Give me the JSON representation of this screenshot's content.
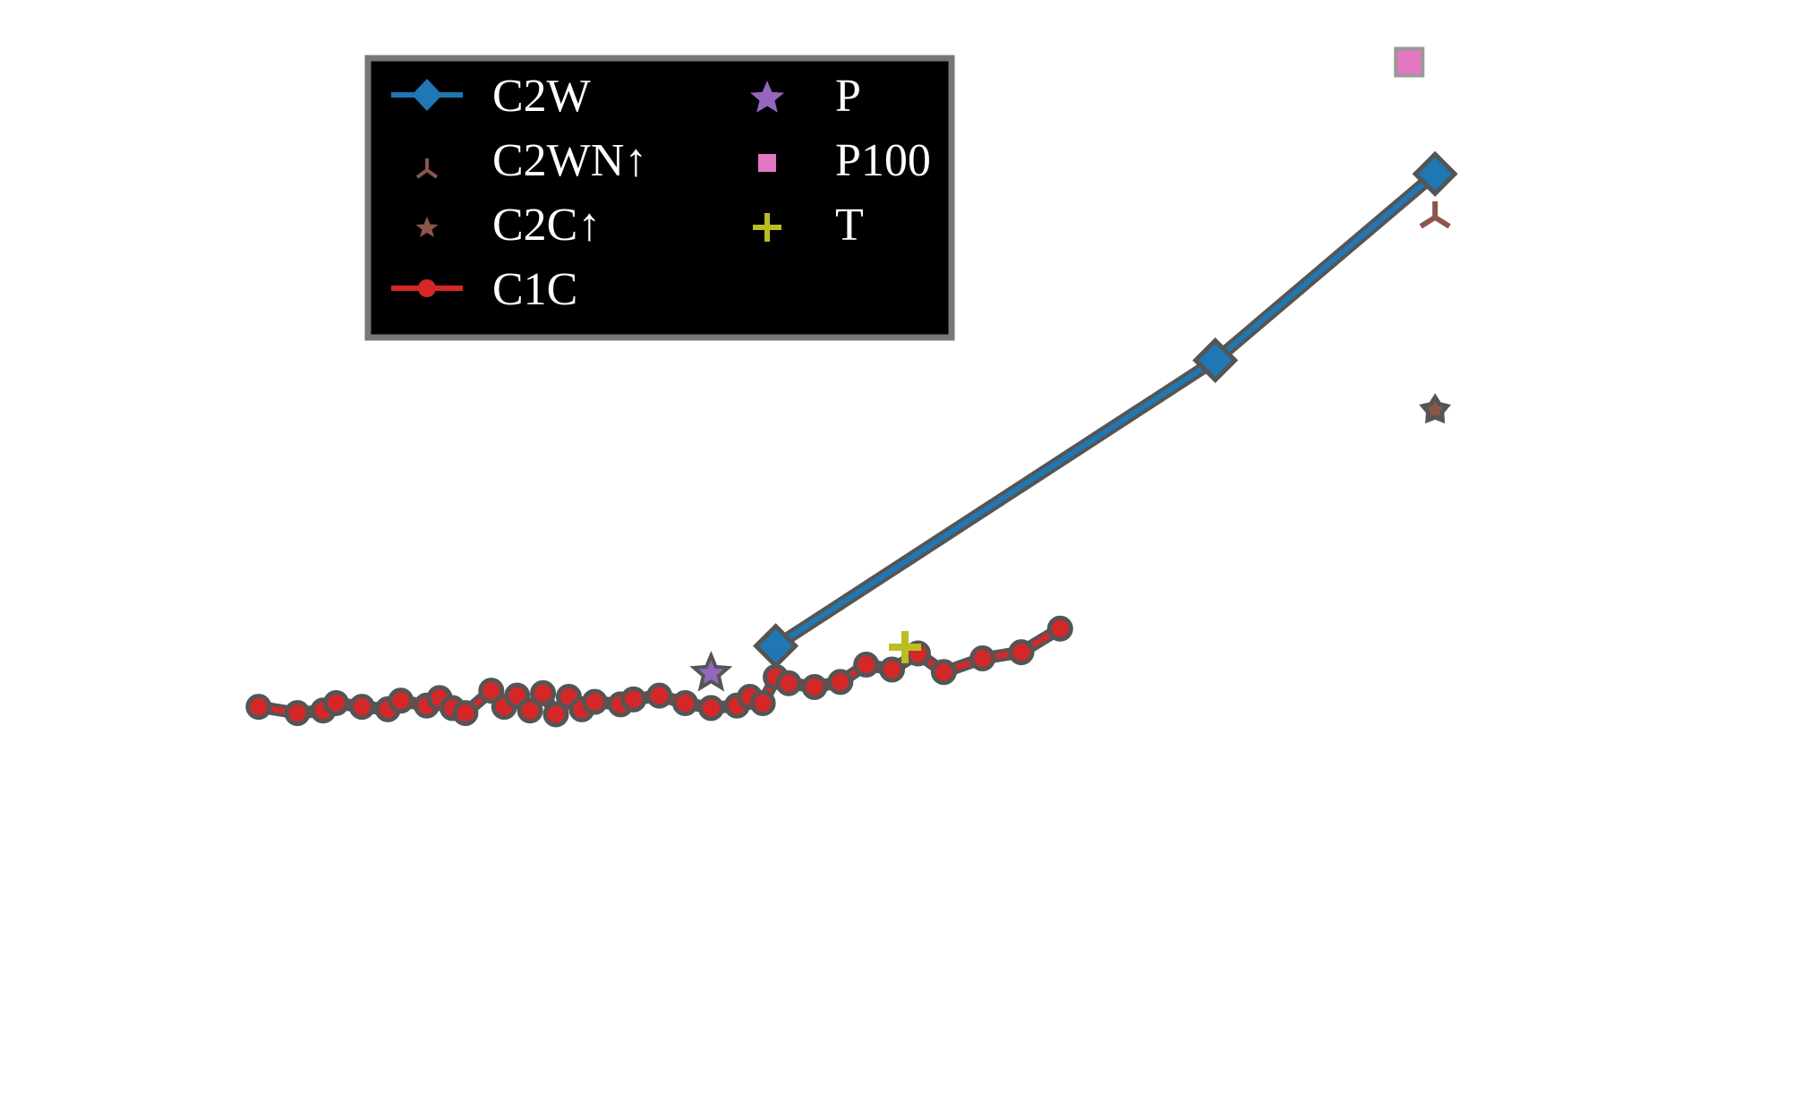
{
  "chart_data": {
    "type": "line",
    "title": "",
    "xlabel": "",
    "ylabel": "",
    "xlim": [
      0,
      14
    ],
    "ylim": [
      -4.5,
      4.5
    ],
    "grid": false,
    "legend_position": "top-left",
    "series": [
      {
        "name": "C2W",
        "kind": "line",
        "color": "#1f77b4",
        "marker": "diamond",
        "points": [
          [
            6.0,
            -0.7
          ],
          [
            9.4,
            1.6
          ],
          [
            11.1,
            3.1
          ]
        ]
      },
      {
        "name": "C2WN↑",
        "kind": "scatter",
        "color": "#8c564b",
        "marker": "tri-down",
        "points": [
          [
            11.1,
            2.75
          ]
        ]
      },
      {
        "name": "C2C↑",
        "kind": "scatter",
        "color": "#8c564b",
        "marker": "star-small",
        "points": [
          [
            11.1,
            1.2
          ]
        ]
      },
      {
        "name": "C1C",
        "kind": "line",
        "color": "#d62728",
        "marker": "circle",
        "points": [
          [
            2.0,
            -1.19
          ],
          [
            2.3,
            -1.24
          ],
          [
            2.5,
            -1.22
          ],
          [
            2.6,
            -1.16
          ],
          [
            2.8,
            -1.19
          ],
          [
            3.0,
            -1.21
          ],
          [
            3.1,
            -1.14
          ],
          [
            3.3,
            -1.18
          ],
          [
            3.4,
            -1.12
          ],
          [
            3.5,
            -1.2
          ],
          [
            3.6,
            -1.24
          ],
          [
            3.8,
            -1.06
          ],
          [
            3.9,
            -1.19
          ],
          [
            4.0,
            -1.1
          ],
          [
            4.1,
            -1.22
          ],
          [
            4.2,
            -1.08
          ],
          [
            4.3,
            -1.25
          ],
          [
            4.4,
            -1.11
          ],
          [
            4.5,
            -1.21
          ],
          [
            4.6,
            -1.15
          ],
          [
            4.8,
            -1.17
          ],
          [
            4.9,
            -1.13
          ],
          [
            5.1,
            -1.1
          ],
          [
            5.3,
            -1.16
          ],
          [
            5.5,
            -1.2
          ],
          [
            5.7,
            -1.18
          ],
          [
            5.8,
            -1.11
          ],
          [
            5.9,
            -1.16
          ],
          [
            6.0,
            -0.95
          ],
          [
            6.1,
            -1.0
          ],
          [
            6.3,
            -1.03
          ],
          [
            6.5,
            -0.99
          ],
          [
            6.7,
            -0.85
          ],
          [
            6.9,
            -0.89
          ],
          [
            7.1,
            -0.76
          ],
          [
            7.3,
            -0.91
          ],
          [
            7.6,
            -0.8
          ],
          [
            7.9,
            -0.75
          ],
          [
            8.2,
            -0.56
          ]
        ]
      },
      {
        "name": "P",
        "kind": "scatter",
        "color": "#9467bd",
        "marker": "star",
        "points": [
          [
            5.5,
            -0.92
          ]
        ]
      },
      {
        "name": "P100",
        "kind": "scatter",
        "color": "#e377c2",
        "marker": "square",
        "points": [
          [
            10.9,
            4.0
          ]
        ]
      },
      {
        "name": "T",
        "kind": "scatter",
        "color": "#bcbd22",
        "marker": "plus",
        "points": [
          [
            7.0,
            -0.71
          ]
        ]
      }
    ]
  }
}
